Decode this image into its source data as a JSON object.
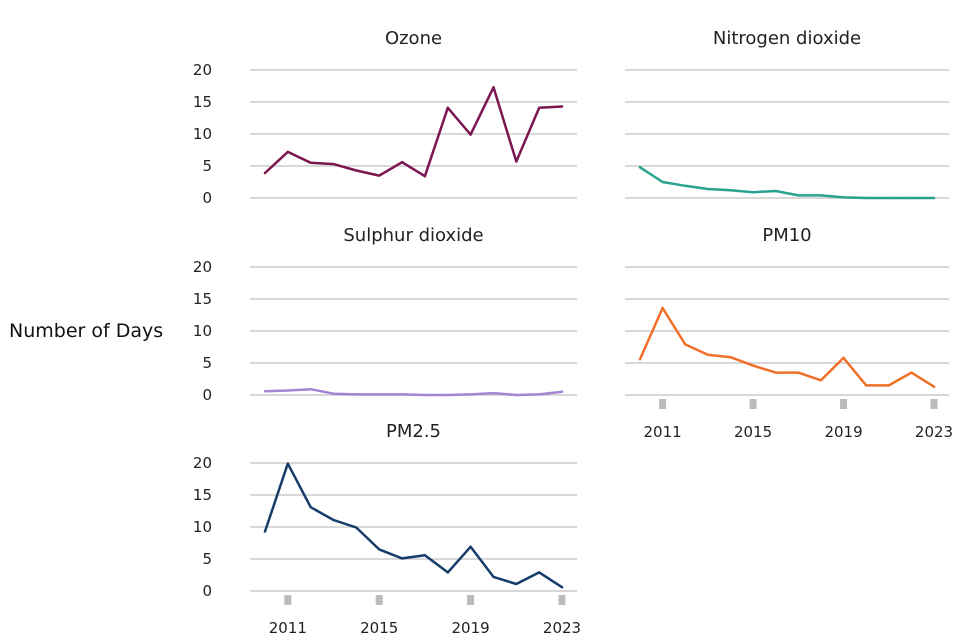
{
  "chart_data": {
    "type": "line",
    "ylabel": "Number of Days",
    "ylim": [
      0,
      20
    ],
    "yticks": [
      "0",
      "5",
      "10",
      "15",
      "20"
    ],
    "x": [
      2010,
      2011,
      2012,
      2013,
      2014,
      2015,
      2016,
      2017,
      2018,
      2019,
      2020,
      2021,
      2022,
      2023
    ],
    "xticks": [
      "2011",
      "2015",
      "2019",
      "2023"
    ],
    "xtick_values": [
      2011,
      2015,
      2019,
      2023
    ],
    "grid": true,
    "panels": [
      {
        "title": "Ozone",
        "color": "#7b1650",
        "values": [
          3.9,
          7.2,
          5.5,
          5.3,
          4.3,
          3.5,
          5.6,
          3.4,
          14.1,
          9.9,
          17.3,
          5.7,
          14.1,
          14.3
        ]
      },
      {
        "title": "Nitrogen dioxide",
        "color": "#29a38f",
        "values": [
          4.8,
          2.5,
          1.9,
          1.4,
          1.2,
          0.9,
          1.1,
          0.4,
          0.4,
          0.1,
          0.0,
          0.0,
          0.0,
          0.0
        ]
      },
      {
        "title": "Sulphur dioxide",
        "color": "#a385d4",
        "values": [
          0.6,
          0.7,
          0.9,
          0.2,
          0.1,
          0.1,
          0.1,
          0.0,
          0.0,
          0.1,
          0.3,
          0.0,
          0.1,
          0.5
        ]
      },
      {
        "title": "PM10",
        "color": "#f0702a",
        "values": [
          5.6,
          13.6,
          7.9,
          6.3,
          5.9,
          4.6,
          3.5,
          3.5,
          2.3,
          5.8,
          1.5,
          1.5,
          3.5,
          1.3
        ]
      },
      {
        "title": "PM2.5",
        "color": "#163d6a",
        "values": [
          9.3,
          19.9,
          13.1,
          11.1,
          9.9,
          6.5,
          5.1,
          5.6,
          2.9,
          6.9,
          2.2,
          1.1,
          2.9,
          0.6
        ]
      }
    ]
  }
}
